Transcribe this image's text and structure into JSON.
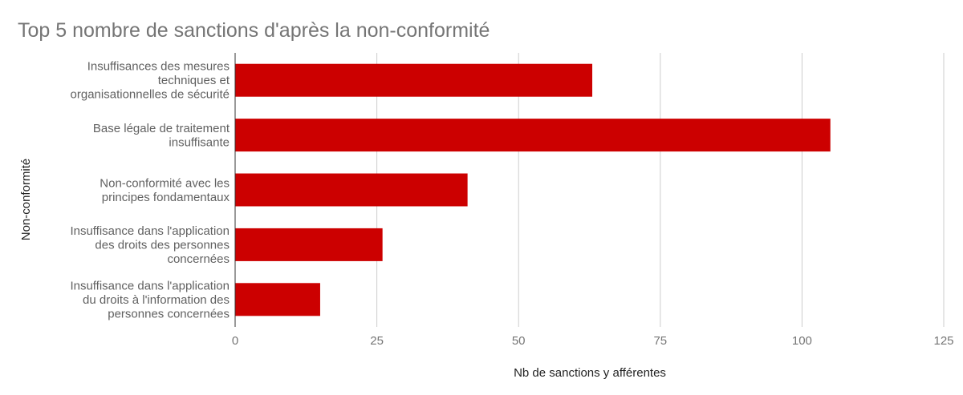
{
  "chart_data": {
    "type": "bar",
    "orientation": "horizontal",
    "title": "Top 5 nombre de sanctions d'après la non-conformité",
    "xlabel": "Nb de sanctions y afférentes",
    "ylabel": "Non-conformité",
    "categories": [
      [
        "Insuffisances des mesures",
        "techniques et",
        "organisationnelles de sécurité"
      ],
      [
        "Base légale de traitement",
        "insuffisante"
      ],
      [
        "Non-conformité avec les",
        "principes fondamentaux"
      ],
      [
        "Insuffisance dans l'application",
        "des droits des personnes",
        "concernées"
      ],
      [
        "Insuffisance dans l'application",
        "du droits à l'information des",
        "personnes concernées"
      ]
    ],
    "values": [
      63,
      105,
      41,
      26,
      15
    ],
    "xlim": [
      0,
      125
    ],
    "xticks": [
      0,
      25,
      50,
      75,
      100,
      125
    ],
    "bar_color": "#cc0000",
    "grid": true
  }
}
